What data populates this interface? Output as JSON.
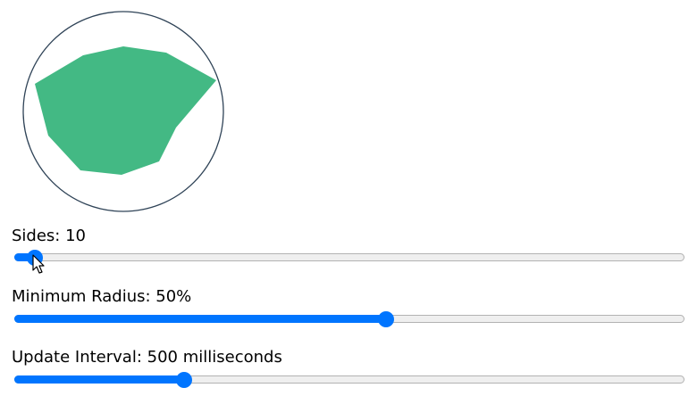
{
  "shape": {
    "fill_color": "#43b984",
    "circle_stroke": "#2f4357"
  },
  "controls": {
    "sides": {
      "label": "Sides: 10",
      "value": 10,
      "fraction": 0.03
    },
    "min_radius": {
      "label": "Minimum Radius: 50%",
      "value": 50,
      "fraction": 0.555
    },
    "interval": {
      "label": "Update Interval: 500 milliseconds",
      "value": 500,
      "fraction": 0.253
    }
  },
  "icons": {
    "cursor": "arrow-cursor-icon"
  }
}
